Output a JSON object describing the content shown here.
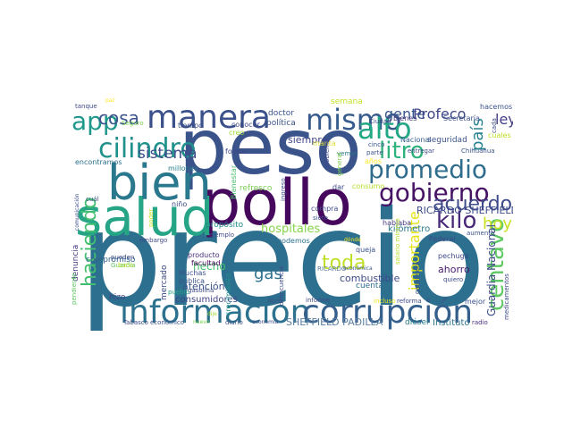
{
  "words": [
    {
      "text": "precio",
      "color": "#2c6f8e"
    },
    {
      "text": "peso",
      "color": "#3a538b"
    },
    {
      "text": "pollo",
      "color": "#46085c"
    },
    {
      "text": "salud",
      "color": "#25a486"
    },
    {
      "text": "bien",
      "color": "#2a788e"
    },
    {
      "text": "información",
      "color": "#2c718e"
    },
    {
      "text": "corrupción",
      "color": "#355f8d"
    },
    {
      "text": "manera",
      "color": "#3b518b"
    },
    {
      "text": "mismo",
      "color": "#375b8d"
    },
    {
      "text": "alto",
      "color": "#22a884"
    },
    {
      "text": "cilindro",
      "color": "#21918c"
    },
    {
      "text": "promedio",
      "color": "#2f6c8e"
    },
    {
      "text": "gobierno",
      "color": "#471365"
    },
    {
      "text": "app",
      "color": "#1f988b"
    },
    {
      "text": "litro",
      "color": "#2eb37c"
    },
    {
      "text": "acuerdo",
      "color": "#3e4a89"
    },
    {
      "text": "kilo",
      "color": "#482878"
    },
    {
      "text": "toda",
      "color": "#bddf26"
    },
    {
      "text": "centavo",
      "color": "#5ec962"
    },
    {
      "text": "haciendo",
      "color": "#42be71"
    },
    {
      "text": "cosa",
      "color": "#3b528b"
    },
    {
      "text": "sistema",
      "color": "#3d4e8a"
    },
    {
      "text": "gente",
      "color": "#39568c"
    },
    {
      "text": "Profeco",
      "color": "#3f4788"
    },
    {
      "text": "país",
      "color": "#26828e"
    },
    {
      "text": "ley",
      "color": "#433e85"
    },
    {
      "text": "hoy",
      "color": "#c8e020"
    },
    {
      "text": "hospitales",
      "color": "#86d549"
    },
    {
      "text": "gas",
      "color": "#2c738e"
    },
    {
      "text": "importante",
      "color": "#e5e419"
    },
    {
      "text": "Guardia Nacional",
      "color": "#3e4c8a"
    },
    {
      "text": "RICARDO SHEFFIELD",
      "color": "#3d4d8a"
    },
    {
      "text": "SHEFFIELD PADILLA",
      "color": "#5b7fa0"
    },
    {
      "text": "combustible",
      "color": "#3e4989"
    },
    {
      "text": "hecho",
      "color": "#44bf70"
    },
    {
      "text": "atención",
      "color": "#3b528b"
    },
    {
      "text": "consumidores",
      "color": "#414487"
    },
    {
      "text": "compromiso",
      "color": "#33638d"
    },
    {
      "text": "mercado",
      "color": "#3e4989"
    },
    {
      "text": "denuncia",
      "color": "#443983"
    },
    {
      "text": "refresco",
      "color": "#7ad151"
    },
    {
      "text": "propósito",
      "color": "#238a8d"
    },
    {
      "text": "siempre",
      "color": "#3f4788"
    },
    {
      "text": "consumo",
      "color": "#b5de2b"
    },
    {
      "text": "ahorro",
      "color": "#481a6c"
    },
    {
      "text": "doctor",
      "color": "#3b528b"
    },
    {
      "text": "política",
      "color": "#3b528b"
    },
    {
      "text": "semana",
      "color": "#c2df23"
    },
    {
      "text": "tiempo",
      "color": "#3b528b"
    },
    {
      "text": "conocer",
      "color": "#3e4a89"
    },
    {
      "text": "creo",
      "color": "#a0da39"
    },
    {
      "text": "millones",
      "color": "#27808e"
    },
    {
      "text": "encontramos",
      "color": "#2d708e"
    },
    {
      "text": "manta",
      "color": "#e1dd37"
    },
    {
      "text": "forma",
      "color": "#3f4889"
    },
    {
      "text": "Bienestar",
      "color": "#4ac16d"
    },
    {
      "text": "niño",
      "color": "#3e4a89"
    },
    {
      "text": "hizo",
      "color": "#414487"
    },
    {
      "text": "producto",
      "color": "#472d7b"
    },
    {
      "text": "facultad",
      "color": "#440154"
    },
    {
      "text": "Muchas",
      "color": "#3b528b"
    },
    {
      "text": "gasolina",
      "color": "#3e4a89"
    },
    {
      "text": "kilómetro",
      "color": "#2a788e"
    },
    {
      "text": "hablaba",
      "color": "#443a83"
    },
    {
      "text": "podemos",
      "color": "#2d708e"
    },
    {
      "text": "queja",
      "color": "#3b528b"
    },
    {
      "text": "cuenta",
      "color": "#2e6e8e"
    },
    {
      "text": "informe",
      "color": "#3e4a89"
    },
    {
      "text": "libro",
      "color": "#3b528b"
    },
    {
      "text": "crecimiento",
      "color": "#21918c"
    },
    {
      "text": "delincuencia",
      "color": "#3e4a89"
    },
    {
      "text": "mejor",
      "color": "#3b528b"
    },
    {
      "text": "diésel",
      "color": "#27808e"
    },
    {
      "text": "Instituto",
      "color": "#2c728e"
    },
    {
      "text": "radio",
      "color": "#472d7b"
    },
    {
      "text": "seguridad",
      "color": "#3b528b"
    },
    {
      "text": "Nacional",
      "color": "#365d8d"
    },
    {
      "text": "Ciudad",
      "color": "#3e4a89"
    },
    {
      "text": "bienes",
      "color": "#443983"
    },
    {
      "text": "Secretaría",
      "color": "#3b528b"
    },
    {
      "text": "hacemos",
      "color": "#3b528b"
    },
    {
      "text": "cuales",
      "color": "#bddf26"
    },
    {
      "text": "Chihuahua",
      "color": "#3b528b"
    },
    {
      "text": "entregar",
      "color": "#3e4a89"
    },
    {
      "text": "cinco",
      "color": "#3b528b"
    },
    {
      "text": "parte",
      "color": "#3b528b"
    },
    {
      "text": "años",
      "color": "#fde725"
    },
    {
      "text": "vemos",
      "color": "#2c718e"
    },
    {
      "text": "general",
      "color": "#7ad151"
    },
    {
      "text": "problema",
      "color": "#3e4a89"
    },
    {
      "text": "ingreso",
      "color": "#3e4a89"
    },
    {
      "text": "compra",
      "color": "#3e4a89"
    },
    {
      "text": "siete",
      "color": "#3b528b"
    },
    {
      "text": "dar",
      "color": "#3e4a89"
    },
    {
      "text": "Federal",
      "color": "#3e4a89"
    },
    {
      "text": "aumento",
      "color": "#3b528b"
    },
    {
      "text": "pechuga",
      "color": "#3e4a89"
    },
    {
      "text": "gasolinera",
      "color": "#3b528b"
    },
    {
      "text": "quiero",
      "color": "#3e4a89"
    },
    {
      "text": "salario mínimo",
      "color": "#b5de2b"
    },
    {
      "text": "reforma",
      "color": "#3e4a89"
    },
    {
      "text": "incluso",
      "color": "#f0e51d"
    },
    {
      "text": "dónde",
      "color": "#fde725"
    },
    {
      "text": "RICARDO",
      "color": "#5b7fa0"
    },
    {
      "text": "económica",
      "color": "#3b528b"
    },
    {
      "text": "ejemplo",
      "color": "#3e4a89"
    },
    {
      "text": "embargo",
      "color": "#3e4a89"
    },
    {
      "text": "pueden",
      "color": "#3e4a89"
    },
    {
      "text": "pública",
      "color": "#3b528b"
    },
    {
      "text": "pueblo",
      "color": "#20a386"
    },
    {
      "text": "Tabasco",
      "color": "#3e4a89"
    },
    {
      "text": "económico",
      "color": "#3b528b"
    },
    {
      "text": "nuevo",
      "color": "#7ad151"
    },
    {
      "text": "diario",
      "color": "#3b528b"
    },
    {
      "text": "economía",
      "color": "#3e4a89"
    },
    {
      "text": "dije",
      "color": "#a0da39"
    },
    {
      "text": "pendiente",
      "color": "#5ec962"
    },
    {
      "text": "comunicación",
      "color": "#3e4a89"
    },
    {
      "text": "cuál",
      "color": "#3b528b"
    },
    {
      "text": "poder",
      "color": "#c8e020"
    },
    {
      "text": "tanque",
      "color": "#3e4a89"
    },
    {
      "text": "paz",
      "color": "#fde725"
    },
    {
      "text": "Seguro",
      "color": "#7ad151"
    },
    {
      "text": "medicamentos",
      "color": "#3e4a89"
    },
    {
      "text": "cada",
      "color": "#3e4a89"
    },
    {
      "text": "Guardia",
      "color": "#5ec962"
    },
    {
      "text": "baño",
      "color": "#b5de2b"
    }
  ]
}
